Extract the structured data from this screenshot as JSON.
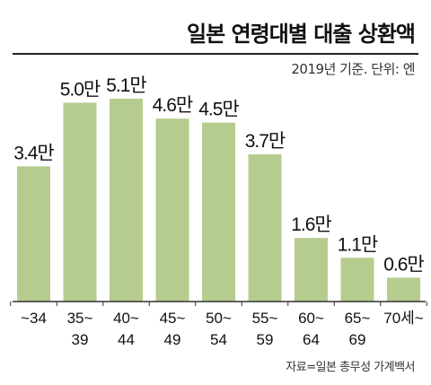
{
  "header": {
    "title": "일본 연령대별 대출 상환액",
    "subtitle": "2019년 기준. 단위: 엔"
  },
  "footer": {
    "source": "자료=일본 총무성 가계백서"
  },
  "colors": {
    "bar": "#b6cc8f",
    "text": "#111111"
  },
  "chart_data": {
    "type": "bar",
    "categories": [
      "~34",
      "35~39",
      "40~44",
      "45~49",
      "50~54",
      "55~59",
      "60~64",
      "65~69",
      "70세~"
    ],
    "category_lines": [
      [
        "~34"
      ],
      [
        "35~",
        "39"
      ],
      [
        "40~",
        "44"
      ],
      [
        "45~",
        "49"
      ],
      [
        "50~",
        "54"
      ],
      [
        "55~",
        "59"
      ],
      [
        "60~",
        "64"
      ],
      [
        "65~",
        "69"
      ],
      [
        "70세~"
      ]
    ],
    "values": [
      3.4,
      5.0,
      5.1,
      4.6,
      4.5,
      3.7,
      1.6,
      1.1,
      0.6
    ],
    "data_labels": [
      "3.4만",
      "5.0만",
      "5.1만",
      "4.6만",
      "4.5만",
      "3.7만",
      "1.6만",
      "1.1만",
      "0.6만"
    ],
    "unit": "엔",
    "ylim": [
      0,
      5.1
    ],
    "grid": false,
    "legend": "none"
  }
}
